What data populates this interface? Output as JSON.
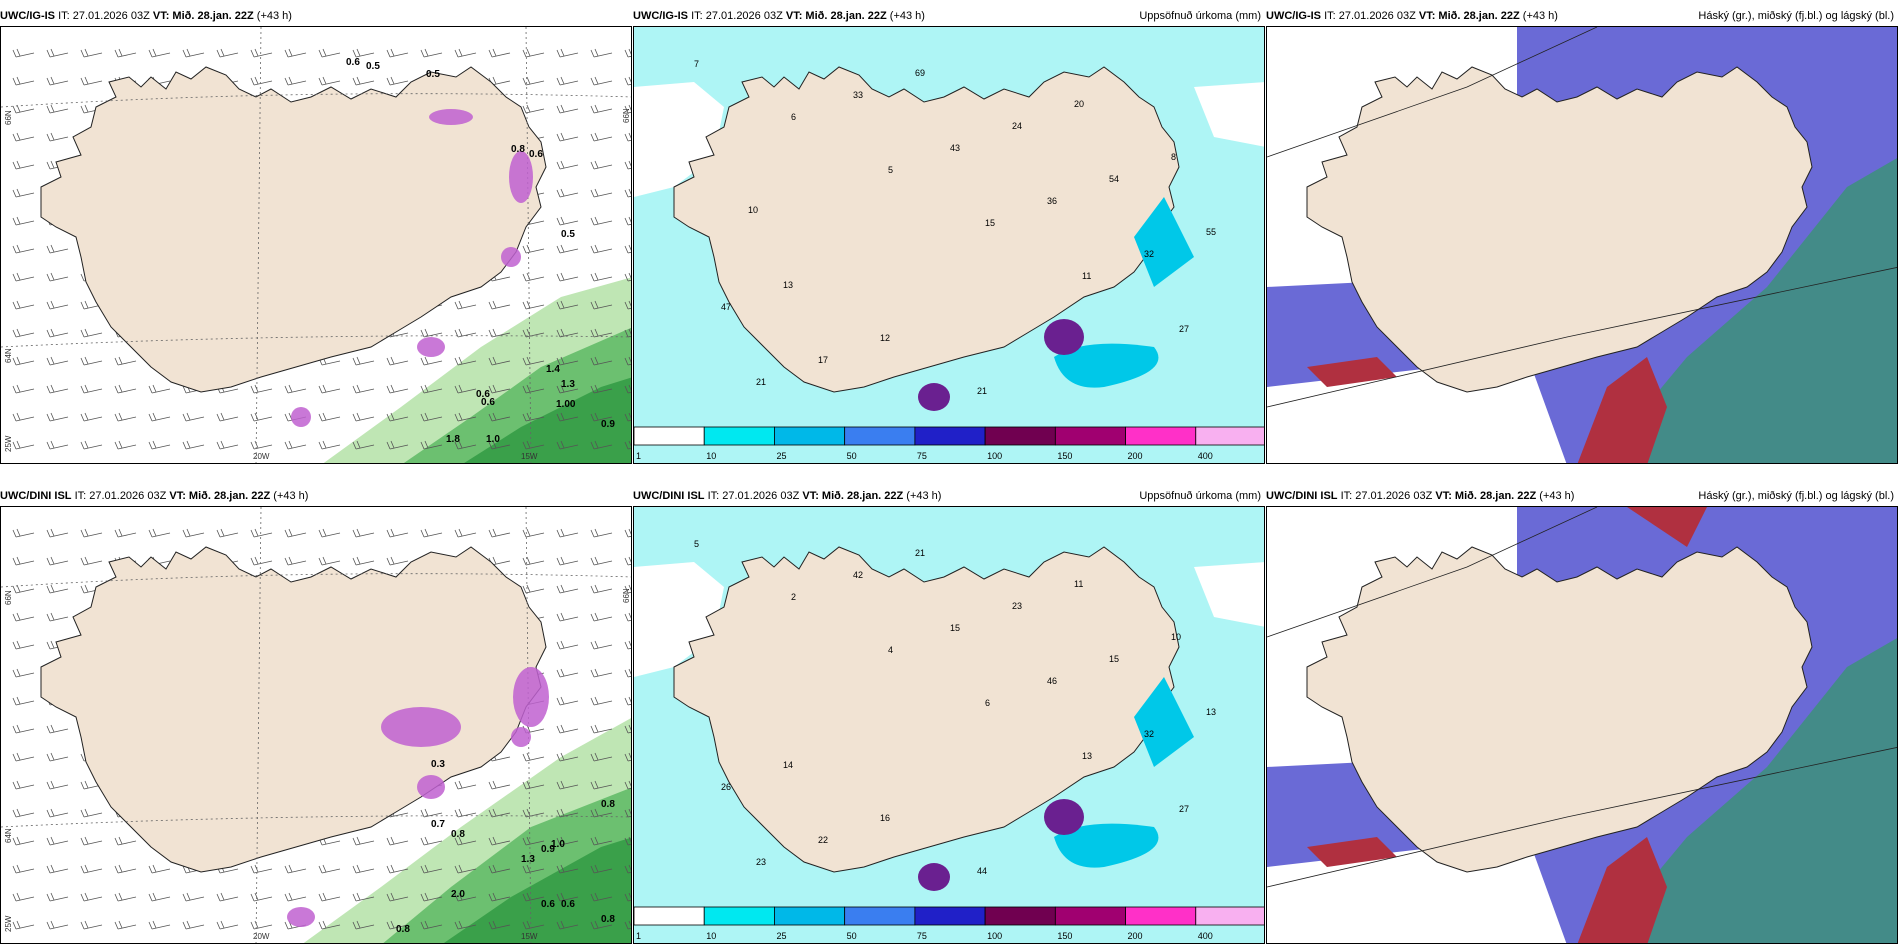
{
  "panels": [
    {
      "model": "UWC/IG-IS",
      "it": "IT: 27.01.2026 03Z",
      "vt_label": "VT:",
      "vt": "Mið. 28.jan. 22Z",
      "lead": "(+43 h)",
      "title": "",
      "type": "precip-type"
    },
    {
      "model": "UWC/IG-IS",
      "it": "IT: 27.01.2026 03Z",
      "vt_label": "VT:",
      "vt": "Mið. 28.jan. 22Z",
      "lead": "(+43 h)",
      "title": "Uppsöfnuð úrkoma (mm)",
      "type": "accum"
    },
    {
      "model": "UWC/IG-IS",
      "it": "IT: 27.01.2026 03Z",
      "vt_label": "VT:",
      "vt": "Mið. 28.jan. 22Z",
      "lead": "(+43 h)",
      "title": "Háský (gr.), miðský (fj.bl.) og lágský (bl.)",
      "type": "cloud"
    },
    {
      "model": "UWC/DINI ISL",
      "it": "IT: 27.01.2026 03Z",
      "vt_label": "VT:",
      "vt": "Mið. 28.jan. 22Z",
      "lead": "(+43 h)",
      "title": "",
      "type": "precip-type"
    },
    {
      "model": "UWC/DINI ISL",
      "it": "IT: 27.01.2026 03Z",
      "vt_label": "VT:",
      "vt": "Mið. 28.jan. 22Z",
      "lead": "(+43 h)",
      "title": "Uppsöfnuð úrkoma (mm)",
      "type": "accum"
    },
    {
      "model": "UWC/DINI ISL",
      "it": "IT: 27.01.2026 03Z",
      "vt_label": "VT:",
      "vt": "Mið. 28.jan. 22Z",
      "lead": "(+43 h)",
      "title": "Háský (gr.), miðský (fj.bl.) og lágský (bl.)",
      "type": "cloud"
    }
  ],
  "grid_labels": {
    "lat66": "66N",
    "lat64": "64N",
    "lon20": "20W",
    "lon15": "15W",
    "lon25": "25W"
  },
  "colorbar": {
    "labels": [
      "1",
      "10",
      "25",
      "50",
      "75",
      "100",
      "150",
      "200",
      "400"
    ],
    "colors": [
      "#ffffff",
      "#00e8f0",
      "#00b8e8",
      "#3a7ef0",
      "#2020c8",
      "#700050",
      "#a00070",
      "#ff30c8",
      "#f8b0f0"
    ]
  },
  "colors": {
    "land": "#f1e3d3",
    "sea_precip": "#aef5f5",
    "snow_purple": "#c060d0",
    "rain_green": "#3aa04a",
    "cloud_high": "#6a6ad6",
    "cloud_mid": "#b03040",
    "cloud_low": "#20a080"
  },
  "accum_values_top": [
    "7",
    "6",
    "5",
    "15",
    "11",
    "27",
    "21",
    "33",
    "43",
    "36",
    "32",
    "47",
    "17",
    "69",
    "24",
    "54",
    "55",
    "13",
    "12",
    "21",
    "20",
    "8",
    "10"
  ],
  "accum_values_bottom": [
    "5",
    "2",
    "4",
    "6",
    "13",
    "27",
    "23",
    "42",
    "15",
    "46",
    "32",
    "26",
    "22",
    "21",
    "23",
    "15",
    "13",
    "14",
    "16",
    "44",
    "11",
    "10"
  ],
  "precip_values_top": [
    "0.6",
    "0.5",
    "0.5",
    "0.8",
    "0.6",
    "0.5",
    "1.3",
    "1.4",
    "0.6",
    "1.00",
    "0.9",
    "1.0",
    "1.8",
    "0.6"
  ],
  "precip_values_bottom": [
    "0.3",
    "0.8",
    "1.0",
    "0.9",
    "1.3",
    "2.0",
    "0.8",
    "0.6",
    "0.8",
    "0.6",
    "0.7",
    "0.8"
  ]
}
